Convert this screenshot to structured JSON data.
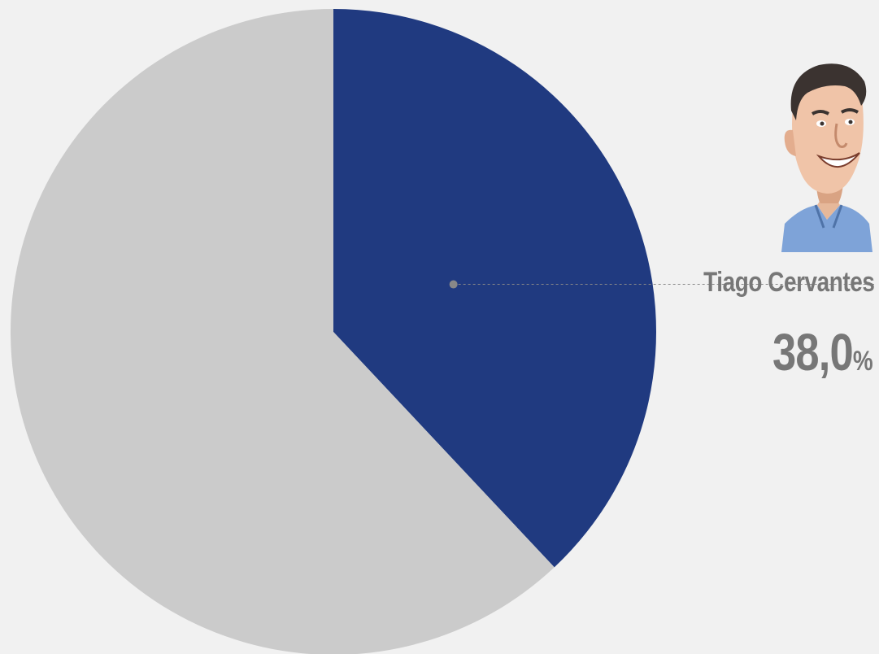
{
  "chart_data": {
    "type": "pie",
    "slices": [
      {
        "name": "Tiago Cervantes",
        "value": 38.0,
        "color": "#203a80"
      },
      {
        "value": 62.0,
        "color": "#cbcbcb"
      }
    ],
    "start": "12 o'clock",
    "direction": "clockwise"
  },
  "candidate": {
    "name": "Tiago Cervantes",
    "value_number": "38,0",
    "value_unit": "%",
    "avatar_icon": "caricature-portrait"
  },
  "colors": {
    "background": "#f1f1f1",
    "label": "#777777",
    "leader": "#888888"
  }
}
